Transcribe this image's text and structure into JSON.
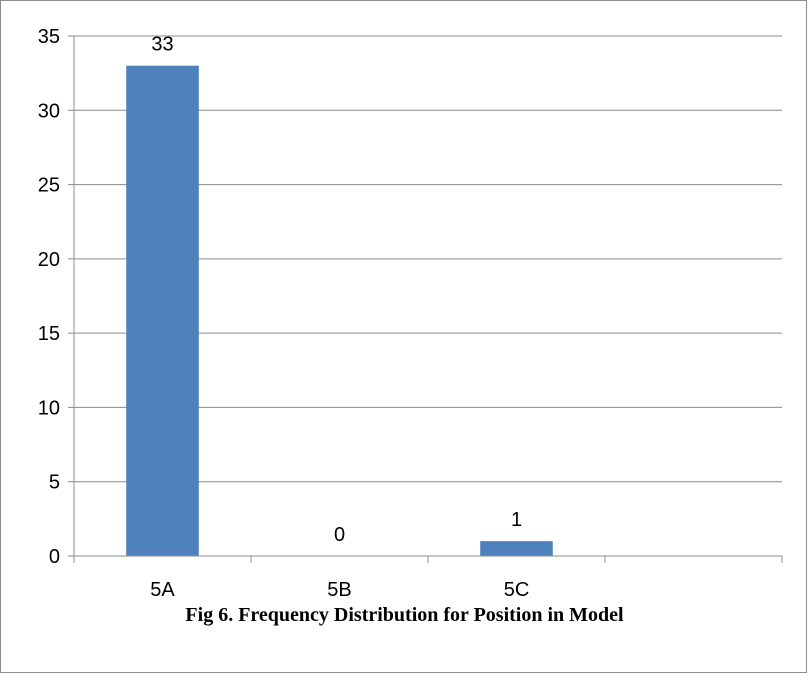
{
  "figure": {
    "caption": "Fig 6. Frequency Distribution for Position in Model"
  },
  "chart_data": {
    "type": "bar",
    "categories": [
      "5A",
      "5B",
      "5C",
      ""
    ],
    "values": [
      33,
      0,
      1,
      null
    ],
    "data_labels": [
      "33",
      "0",
      "1",
      ""
    ],
    "title": "",
    "xlabel": "",
    "ylabel": "",
    "ylim": [
      0,
      35
    ],
    "yticks": [
      0,
      5,
      10,
      15,
      20,
      25,
      30,
      35
    ],
    "grid": true,
    "legend": "none",
    "bar_color": "#4f81bd",
    "gridline_color": "#8c8c8c"
  }
}
